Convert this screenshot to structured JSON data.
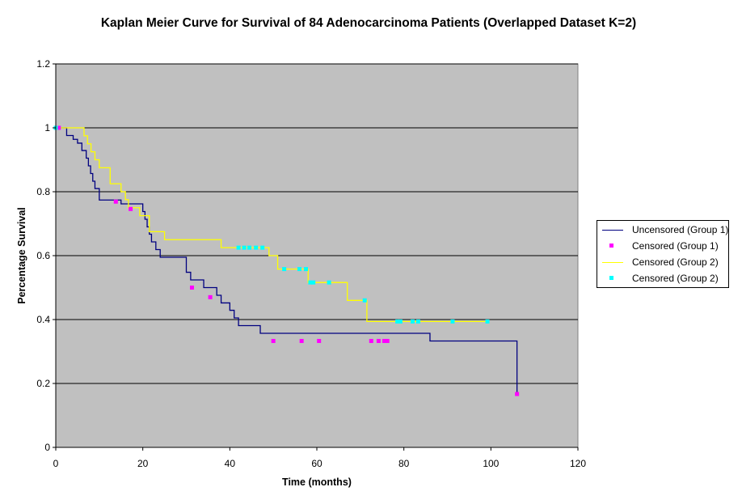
{
  "chart_data": {
    "type": "line",
    "title": "Kaplan Meier Curve for Survival of 84 Adenocarcinoma Patients (Overlapped Dataset K=2)",
    "xlabel": "Time (months)",
    "ylabel": "Percentage Survival",
    "xlim": [
      0,
      120
    ],
    "ylim": [
      0,
      1.2
    ],
    "x_ticks": [
      0,
      20,
      40,
      60,
      80,
      100,
      120
    ],
    "y_ticks": [
      0,
      0.2,
      0.4,
      0.6,
      0.8,
      1,
      1.2
    ],
    "x_tick_labels": [
      "0",
      "20",
      "40",
      "60",
      "80",
      "100",
      "120"
    ],
    "y_tick_labels": [
      "0",
      "0.2",
      "0.4",
      "0.6",
      "0.8",
      "1",
      "1.2"
    ],
    "grid": "horizontal",
    "legend_position": "right",
    "series": [
      {
        "name": "Uncensored (Group 1)",
        "kind": "step-line",
        "color": "#000080",
        "x": [
          0,
          2.5,
          4,
          5,
          6,
          7,
          7.5,
          8,
          8.5,
          9,
          10,
          15,
          20,
          20.5,
          21,
          21.5,
          22,
          23,
          24,
          30,
          31,
          34,
          37,
          38,
          40,
          41,
          42,
          47,
          86,
          106
        ],
        "y": [
          1,
          0.976,
          0.964,
          0.952,
          0.929,
          0.905,
          0.881,
          0.857,
          0.833,
          0.81,
          0.774,
          0.762,
          0.738,
          0.714,
          0.69,
          0.667,
          0.643,
          0.619,
          0.595,
          0.548,
          0.524,
          0.5,
          0.476,
          0.452,
          0.429,
          0.405,
          0.381,
          0.357,
          0.333,
          0.167
        ]
      },
      {
        "name": "Censored (Group 1)",
        "kind": "markers",
        "color": "#ff00ff",
        "x": [
          0.7,
          13.8,
          17.2,
          31.3,
          35.5,
          50,
          56.5,
          60.5,
          72.5,
          74.2,
          75.5,
          76.2,
          106
        ],
        "y": [
          1,
          0.769,
          0.746,
          0.5,
          0.47,
          0.333,
          0.333,
          0.333,
          0.333,
          0.333,
          0.333,
          0.333,
          0.167
        ]
      },
      {
        "name": "Censored (Group 2)",
        "kind": "step-line",
        "color": "#ffff00",
        "x": [
          0,
          6.5,
          7.3,
          8.1,
          9,
          10,
          12.5,
          15,
          16,
          16.7,
          19.3,
          21.5,
          25,
          38,
          49,
          51,
          58,
          67,
          71.5,
          99.5
        ],
        "y": [
          1,
          0.975,
          0.95,
          0.925,
          0.9,
          0.875,
          0.825,
          0.8,
          0.775,
          0.75,
          0.725,
          0.675,
          0.65,
          0.625,
          0.6,
          0.558,
          0.516,
          0.46,
          0.394,
          0.394
        ]
      },
      {
        "name": "Censored (Group 2)",
        "kind": "markers",
        "color": "#00ffff",
        "x": [
          0,
          42,
          43.3,
          44.5,
          46,
          47.5,
          52.5,
          56,
          57.5,
          58.5,
          59.2,
          62.8,
          71,
          78.5,
          79.2,
          82,
          83.3,
          91.2,
          99.2
        ],
        "y": [
          1,
          0.625,
          0.625,
          0.625,
          0.625,
          0.625,
          0.558,
          0.558,
          0.558,
          0.516,
          0.516,
          0.516,
          0.46,
          0.394,
          0.394,
          0.394,
          0.394,
          0.394,
          0.394
        ]
      }
    ]
  }
}
